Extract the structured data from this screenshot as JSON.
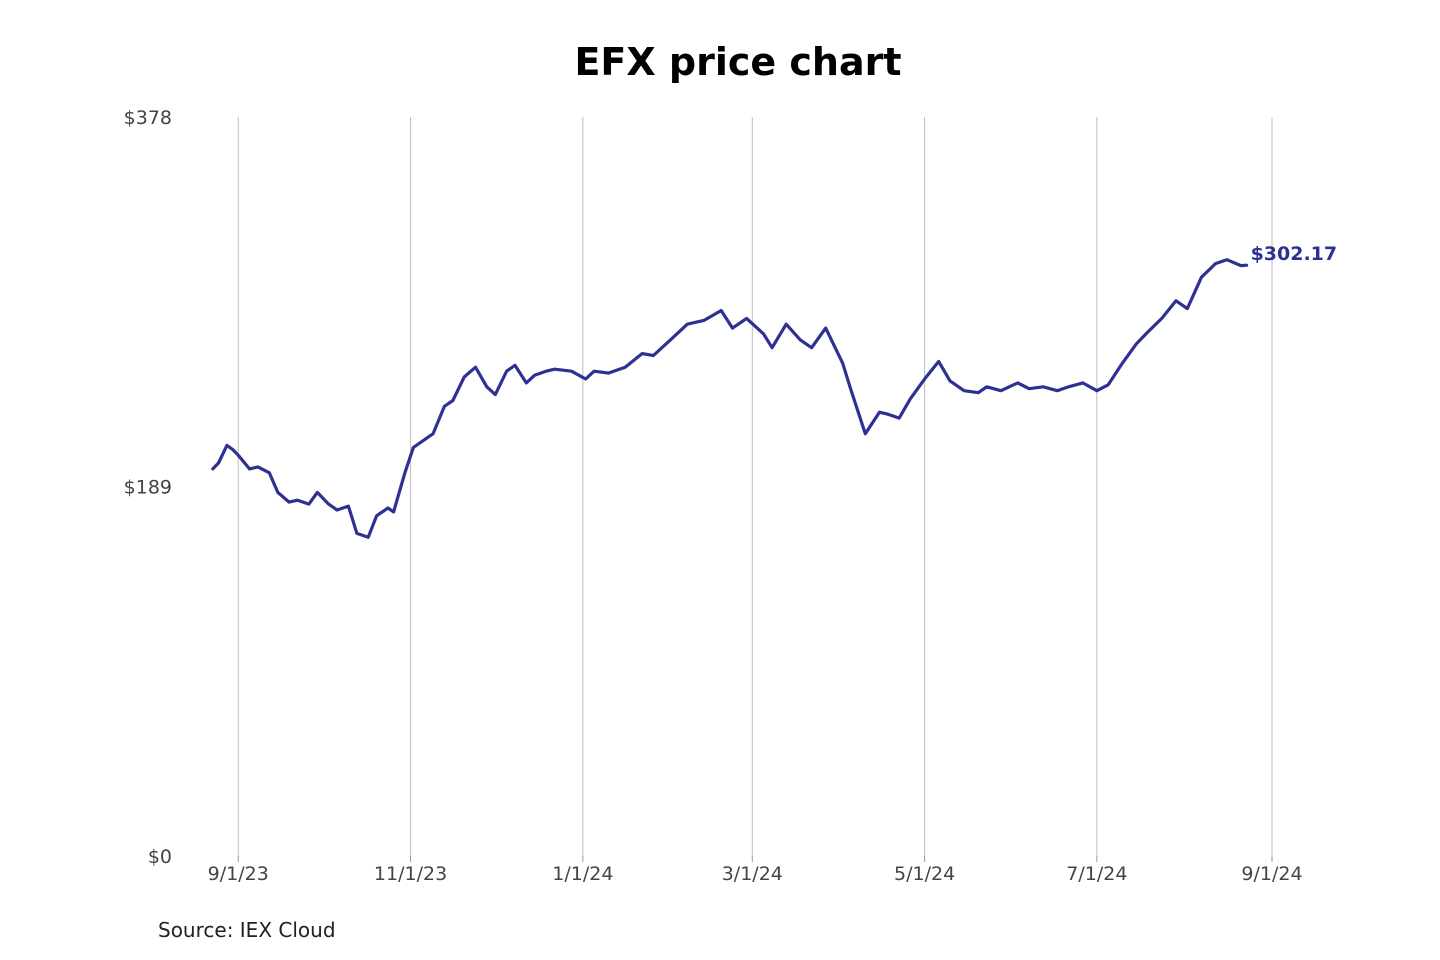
{
  "chart_data": {
    "type": "line",
    "title": "EFX price chart",
    "source": "Source: IEX Cloud",
    "xlabel": "",
    "ylabel": "",
    "ylim": [
      0,
      378
    ],
    "yticks": [
      {
        "value": 0,
        "label": "$0"
      },
      {
        "value": 189,
        "label": "$189"
      },
      {
        "value": 378,
        "label": "$378"
      }
    ],
    "xlim": [
      "2023-08-22",
      "2024-09-01"
    ],
    "xticks": [
      {
        "date": "2023-09-01",
        "label": "9/1/23"
      },
      {
        "date": "2023-11-01",
        "label": "11/1/23"
      },
      {
        "date": "2024-01-01",
        "label": "1/1/24"
      },
      {
        "date": "2024-03-01",
        "label": "3/1/24"
      },
      {
        "date": "2024-05-01",
        "label": "5/1/24"
      },
      {
        "date": "2024-07-01",
        "label": "7/1/24"
      },
      {
        "date": "2024-09-01",
        "label": "9/1/24"
      }
    ],
    "grid": "vertical",
    "line_color": "#2e3192",
    "end_label": "$302.17",
    "series": [
      {
        "x": [
          "2023-08-23",
          "2023-08-25",
          "2023-08-28",
          "2023-08-30",
          "2023-09-01",
          "2023-09-05",
          "2023-09-08",
          "2023-09-12",
          "2023-09-15",
          "2023-09-19",
          "2023-09-22",
          "2023-09-26",
          "2023-09-29",
          "2023-10-03",
          "2023-10-06",
          "2023-10-10",
          "2023-10-13",
          "2023-10-17",
          "2023-10-20",
          "2023-10-24",
          "2023-10-26",
          "2023-10-30",
          "2023-11-02",
          "2023-11-06",
          "2023-11-09",
          "2023-11-13",
          "2023-11-16",
          "2023-11-20",
          "2023-11-24",
          "2023-11-28",
          "2023-12-01",
          "2023-12-05",
          "2023-12-08",
          "2023-12-12",
          "2023-12-15",
          "2023-12-19",
          "2023-12-22",
          "2023-12-28",
          "2024-01-02",
          "2024-01-05",
          "2024-01-10",
          "2024-01-16",
          "2024-01-22",
          "2024-01-26",
          "2024-02-01",
          "2024-02-07",
          "2024-02-13",
          "2024-02-19",
          "2024-02-23",
          "2024-02-28",
          "2024-03-05",
          "2024-03-08",
          "2024-03-13",
          "2024-03-18",
          "2024-03-22",
          "2024-03-27",
          "2024-04-02",
          "2024-04-05",
          "2024-04-10",
          "2024-04-15",
          "2024-04-18",
          "2024-04-22",
          "2024-04-26",
          "2024-05-01",
          "2024-05-06",
          "2024-05-10",
          "2024-05-15",
          "2024-05-20",
          "2024-05-23",
          "2024-05-28",
          "2024-06-03",
          "2024-06-07",
          "2024-06-12",
          "2024-06-17",
          "2024-06-21",
          "2024-06-26",
          "2024-07-01",
          "2024-07-05",
          "2024-07-10",
          "2024-07-15",
          "2024-07-19",
          "2024-07-24",
          "2024-07-29",
          "2024-08-02",
          "2024-08-07",
          "2024-08-12",
          "2024-08-16",
          "2024-08-21",
          "2024-08-23"
        ],
        "values": [
          198,
          201,
          210,
          208,
          205,
          198,
          199,
          196,
          186,
          181,
          182,
          180,
          186,
          180,
          177,
          179,
          165,
          163,
          174,
          178,
          176,
          196,
          209,
          213,
          216,
          230,
          233,
          245,
          250,
          240,
          236,
          248,
          251,
          242,
          246,
          248,
          249,
          248,
          244,
          248,
          247,
          250,
          257,
          256,
          264,
          272,
          274,
          279,
          270,
          275,
          267,
          260,
          272,
          264,
          260,
          270,
          252,
          238,
          216,
          227,
          226,
          224,
          234,
          244,
          253,
          243,
          238,
          237,
          240,
          238,
          242,
          239,
          240,
          238,
          240,
          242,
          238,
          241,
          252,
          262,
          268,
          275,
          284,
          280,
          296,
          303,
          305,
          302,
          302.17
        ]
      }
    ]
  }
}
